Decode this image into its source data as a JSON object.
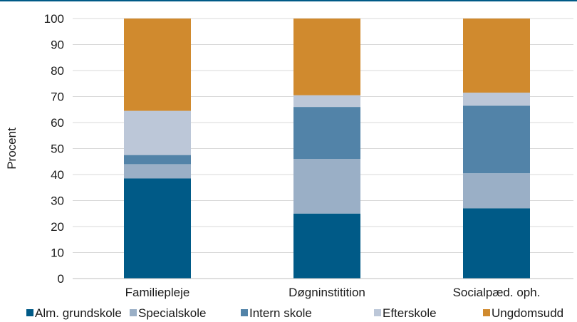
{
  "chart_data": {
    "type": "bar",
    "stacked": true,
    "title": "",
    "xlabel": "",
    "ylabel": "Procent",
    "ylim": [
      0,
      100
    ],
    "yticks": [
      0,
      10,
      20,
      30,
      40,
      50,
      60,
      70,
      80,
      90,
      100
    ],
    "categories": [
      "Familiepleje",
      "Døgninstitition",
      "Socialpæd. oph."
    ],
    "series": [
      {
        "name": "Alm. grundskole",
        "color": "#005a87",
        "values": [
          38.5,
          25,
          27
        ]
      },
      {
        "name": "Specialskole",
        "color": "#9aafc6",
        "values": [
          5.5,
          21,
          13.5
        ]
      },
      {
        "name": "Intern skole",
        "color": "#5283a8",
        "values": [
          3.5,
          20,
          26
        ]
      },
      {
        "name": "Efterskole",
        "color": "#bcc7d8",
        "values": [
          17,
          4.5,
          5
        ]
      },
      {
        "name": "Ungdomsudd",
        "color": "#d08a2e",
        "values": [
          35.5,
          29.5,
          28.5
        ]
      }
    ],
    "grid": "horizontal",
    "legend_position": "bottom"
  }
}
